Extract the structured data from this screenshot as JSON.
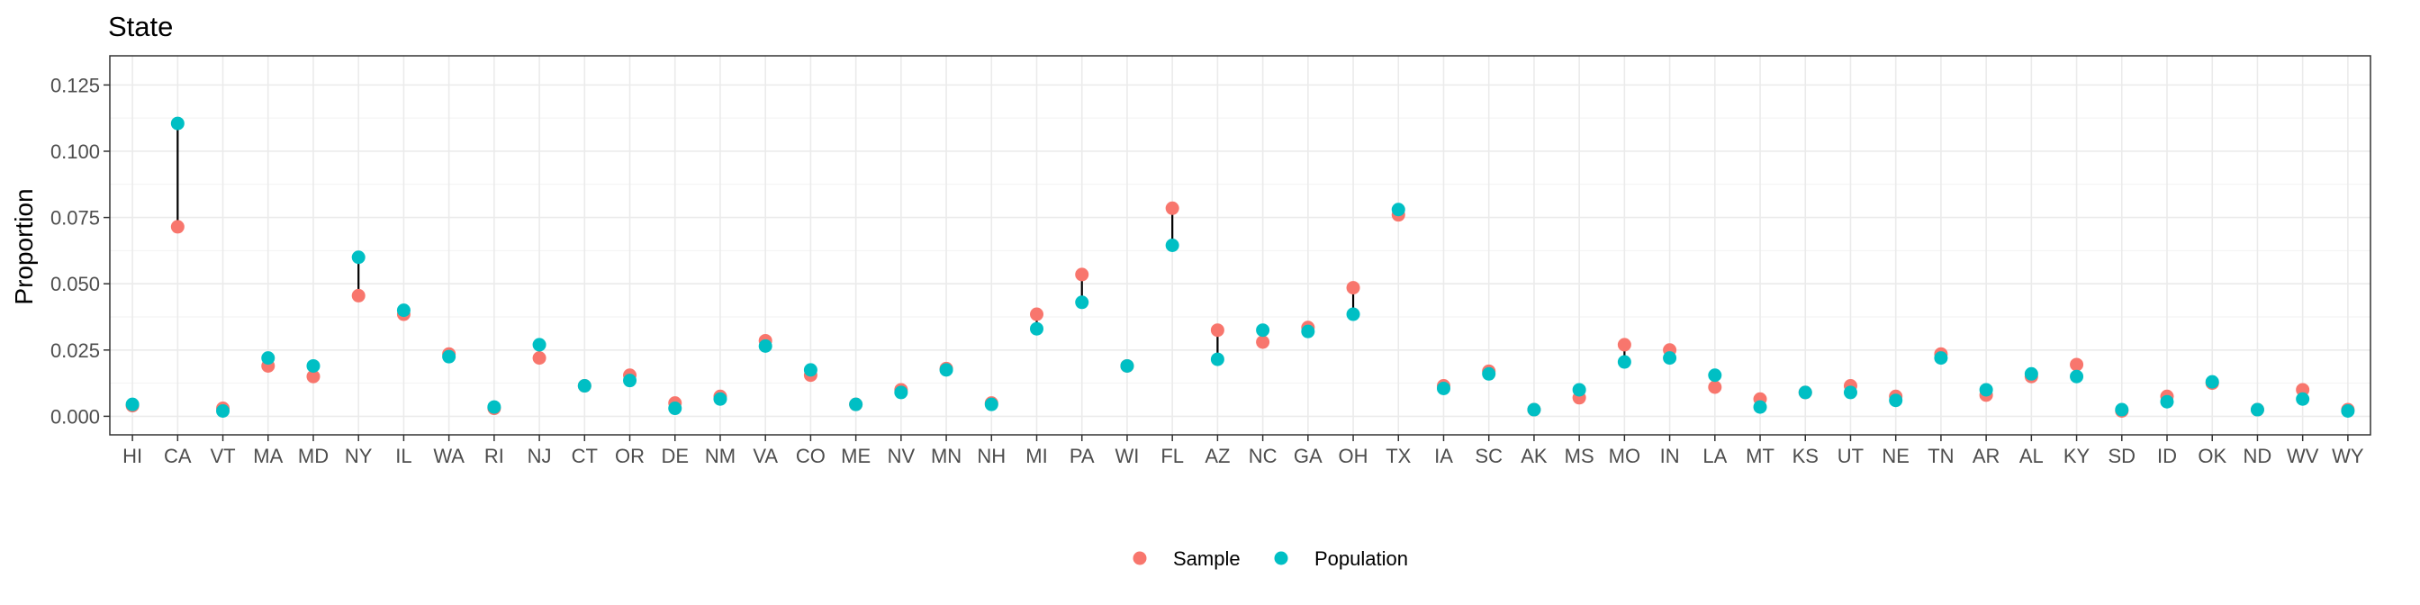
{
  "chart_data": {
    "type": "scatter",
    "title": "State",
    "xlabel": "",
    "ylabel": "Proportion",
    "ylim": [
      -0.007,
      0.136
    ],
    "yticks": [
      "0.000",
      "0.025",
      "0.050",
      "0.075",
      "0.100",
      "0.125"
    ],
    "grid": true,
    "legend_position": "bottom",
    "categories": [
      "HI",
      "CA",
      "VT",
      "MA",
      "MD",
      "NY",
      "IL",
      "WA",
      "RI",
      "NJ",
      "CT",
      "OR",
      "DE",
      "NM",
      "VA",
      "CO",
      "ME",
      "NV",
      "MN",
      "NH",
      "MI",
      "PA",
      "WI",
      "FL",
      "AZ",
      "NC",
      "GA",
      "OH",
      "TX",
      "IA",
      "SC",
      "AK",
      "MS",
      "MO",
      "IN",
      "LA",
      "MT",
      "KS",
      "UT",
      "NE",
      "TN",
      "AR",
      "AL",
      "KY",
      "SD",
      "ID",
      "OK",
      "ND",
      "WV",
      "WY"
    ],
    "series": [
      {
        "name": "Sample",
        "color": "#F8766D",
        "values": [
          0.004,
          0.0715,
          0.003,
          0.019,
          0.015,
          0.0455,
          0.0385,
          0.0235,
          0.003,
          0.022,
          0.0115,
          0.0155,
          0.005,
          0.0075,
          0.0285,
          0.0155,
          0.0045,
          0.01,
          0.018,
          0.005,
          0.0385,
          0.0535,
          0.019,
          0.0785,
          0.0325,
          0.028,
          0.0335,
          0.0485,
          0.076,
          0.0115,
          0.017,
          0.0025,
          0.007,
          0.027,
          0.025,
          0.011,
          0.0065,
          0.009,
          0.0115,
          0.0075,
          0.0235,
          0.008,
          0.015,
          0.0195,
          0.002,
          0.0075,
          0.0125,
          0.0025,
          0.01,
          0.0025
        ]
      },
      {
        "name": "Population",
        "color": "#00BFC4",
        "values": [
          0.0045,
          0.1105,
          0.002,
          0.022,
          0.019,
          0.06,
          0.04,
          0.0225,
          0.0035,
          0.027,
          0.0115,
          0.0135,
          0.003,
          0.0065,
          0.0265,
          0.0175,
          0.0045,
          0.009,
          0.0175,
          0.0045,
          0.033,
          0.043,
          0.019,
          0.0645,
          0.0215,
          0.0325,
          0.032,
          0.0385,
          0.078,
          0.0105,
          0.016,
          0.0025,
          0.01,
          0.0205,
          0.022,
          0.0155,
          0.0035,
          0.009,
          0.009,
          0.006,
          0.022,
          0.01,
          0.016,
          0.015,
          0.0025,
          0.0055,
          0.013,
          0.0025,
          0.0065,
          0.002
        ]
      }
    ]
  }
}
